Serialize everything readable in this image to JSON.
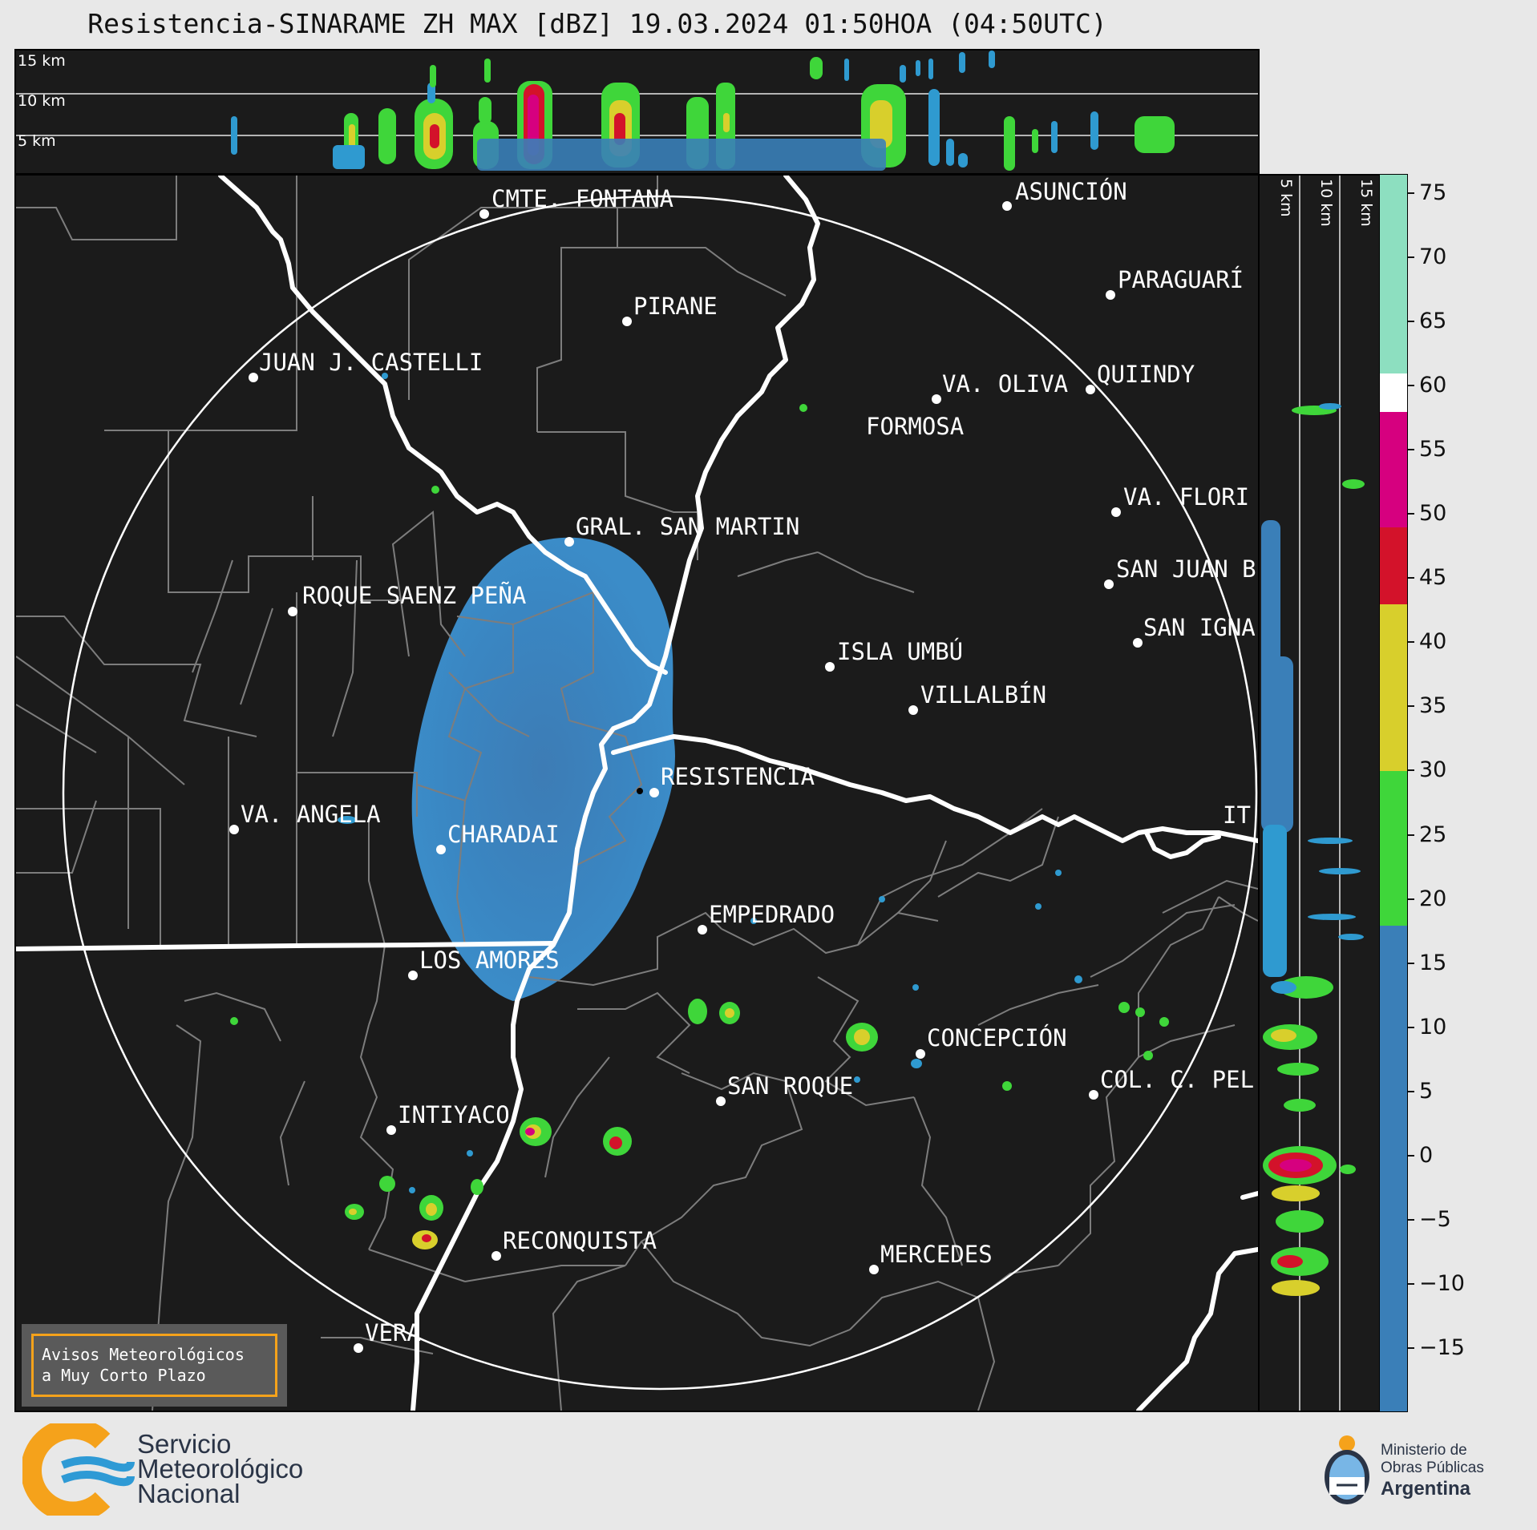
{
  "title": "Resistencia-SINARAME ZH MAX [dBZ] 19.03.2024 01:50HOA (04:50UTC)",
  "top_panel": {
    "height_labels": [
      "15 km",
      "10 km",
      "5 km"
    ]
  },
  "side_panel": {
    "height_labels": [
      "5 km",
      "10 km",
      "15 km"
    ]
  },
  "map": {
    "radar_site": "RESISTENCIA",
    "cities": [
      {
        "name": "CMTE. FONTANA"
      },
      {
        "name": "ASUNCIÓN"
      },
      {
        "name": "PIRANE"
      },
      {
        "name": "PARAGUARÍ"
      },
      {
        "name": "JUAN J. CASTELLI"
      },
      {
        "name": "VA. OLIVA"
      },
      {
        "name": "QUIINDY"
      },
      {
        "name": "FORMOSA"
      },
      {
        "name": "VA. FLORI"
      },
      {
        "name": "GRAL. SAN MARTIN"
      },
      {
        "name": "SAN JUAN B"
      },
      {
        "name": "ROQUE SAENZ PEÑA"
      },
      {
        "name": "SAN IGNA"
      },
      {
        "name": "ISLA UMBÚ"
      },
      {
        "name": "VILLALBÍN"
      },
      {
        "name": "RESISTENCIA"
      },
      {
        "name": "VA. ANGELA"
      },
      {
        "name": "CHARADAI"
      },
      {
        "name": "IT"
      },
      {
        "name": "EMPEDRADO"
      },
      {
        "name": "LOS AMORES"
      },
      {
        "name": "CONCEPCIÓN"
      },
      {
        "name": "SAN ROQUE"
      },
      {
        "name": "COL. C. PEL"
      },
      {
        "name": "INTIYACO"
      },
      {
        "name": "RECONQUISTA"
      },
      {
        "name": "MERCEDES"
      },
      {
        "name": "VERA"
      }
    ]
  },
  "colorbar": {
    "unit": "dBZ",
    "tick_labels": [
      "75",
      "70",
      "65",
      "60",
      "55",
      "50",
      "45",
      "40",
      "35",
      "30",
      "25",
      "20",
      "15",
      "10",
      "5",
      "0",
      "−5",
      "−10",
      "−15"
    ],
    "min": -20,
    "max": 76.5,
    "bands": [
      {
        "from": -20,
        "to": 18,
        "color": "#3a7fb8"
      },
      {
        "from": 18,
        "to": 30,
        "color": "#3fd63a"
      },
      {
        "from": 30,
        "to": 43,
        "color": "#d8cf2c"
      },
      {
        "from": 43,
        "to": 49,
        "color": "#d3122a"
      },
      {
        "from": 49,
        "to": 58,
        "color": "#d6007f"
      },
      {
        "from": 58,
        "to": 61,
        "color": "#ffffff"
      },
      {
        "from": 61,
        "to": 76.5,
        "color": "#8ddfc0"
      }
    ]
  },
  "warning_box": {
    "line1": "Avisos Meteorológicos",
    "line2": "a Muy Corto Plazo"
  },
  "footer": {
    "smn": [
      "Servicio",
      "Meteorológico",
      "Nacional"
    ],
    "ministry": [
      "Ministerio de",
      "Obras Públicas",
      "Argentina"
    ]
  },
  "colors": {
    "background": "#1b1b1b",
    "rivers": "#ffffff",
    "borders": "#7d7d7d",
    "warning_border": "#f5a21b"
  }
}
